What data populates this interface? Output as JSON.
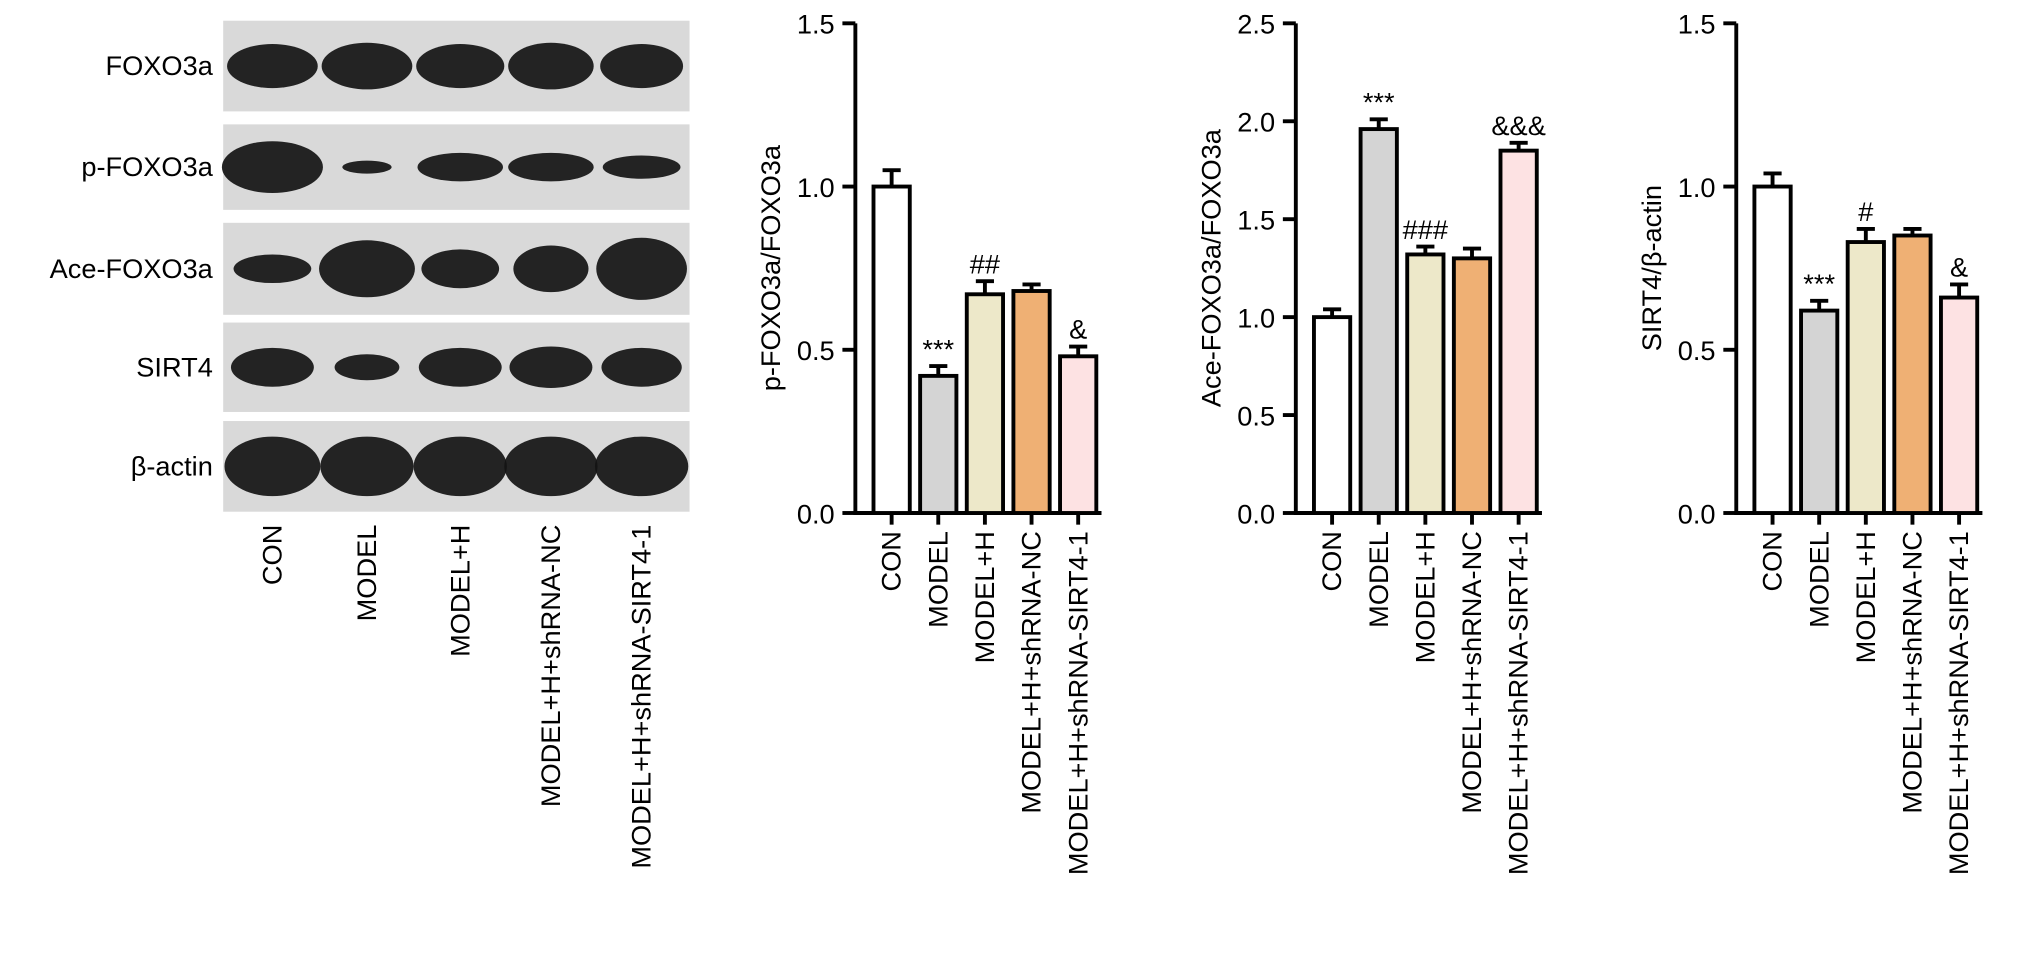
{
  "blot": {
    "rows": [
      "FOXO3a",
      "p-FOXO3a",
      "Ace-FOXO3a",
      "SIRT4",
      "β-actin"
    ],
    "lanes": [
      "CON",
      "MODEL",
      "MODEL+H",
      "MODEL+H+shRNA-NC",
      "MODEL+H+shRNA-SIRT4-1"
    ]
  },
  "chart_data": [
    {
      "type": "bar",
      "ylabel": "p-FOXO3a/FOXO3a",
      "categories": [
        "CON",
        "MODEL",
        "MODEL+H",
        "MODEL+H+shRNA-NC",
        "MODEL+H+shRNA-SIRT4-1"
      ],
      "values": [
        1.0,
        0.42,
        0.67,
        0.68,
        0.48
      ],
      "errors": [
        0.05,
        0.03,
        0.04,
        0.02,
        0.03
      ],
      "colors": [
        "#ffffff",
        "#d4d4d4",
        "#ede8c9",
        "#efb074",
        "#fde2e3"
      ],
      "annotations": [
        null,
        "***",
        "##",
        null,
        "&"
      ],
      "ylim": [
        0,
        1.5
      ],
      "yticks": [
        {
          "value": 0,
          "label": "0.0"
        },
        0.5,
        {
          "value": 1,
          "label": "1.0"
        },
        1.5
      ]
    },
    {
      "type": "bar",
      "ylabel": "Ace-FOXO3a/FOXO3a",
      "categories": [
        "CON",
        "MODEL",
        "MODEL+H",
        "MODEL+H+shRNA-NC",
        "MODEL+H+shRNA-SIRT4-1"
      ],
      "values": [
        1.0,
        1.96,
        1.32,
        1.3,
        1.85
      ],
      "errors": [
        0.04,
        0.05,
        0.04,
        0.05,
        0.04
      ],
      "colors": [
        "#ffffff",
        "#d4d4d4",
        "#ede8c9",
        "#efb074",
        "#fde2e3"
      ],
      "annotations": [
        null,
        "***",
        "###",
        null,
        "&&&"
      ],
      "ylim": [
        0,
        2.5
      ],
      "yticks": [
        {
          "value": 0,
          "label": "0.0"
        },
        0.5,
        {
          "value": 1,
          "label": "1.0"
        },
        1.5,
        {
          "value": 2,
          "label": "2.0"
        },
        2.5
      ]
    },
    {
      "type": "bar",
      "ylabel": "SIRT4/β-actin",
      "categories": [
        "CON",
        "MODEL",
        "MODEL+H",
        "MODEL+H+shRNA-NC",
        "MODEL+H+shRNA-SIRT4-1"
      ],
      "values": [
        1.0,
        0.62,
        0.83,
        0.85,
        0.66
      ],
      "errors": [
        0.04,
        0.03,
        0.04,
        0.02,
        0.04
      ],
      "colors": [
        "#ffffff",
        "#d4d4d4",
        "#ede8c9",
        "#efb074",
        "#fde2e3"
      ],
      "annotations": [
        null,
        "***",
        "#",
        null,
        "&"
      ],
      "ylim": [
        0,
        1.5
      ],
      "yticks": [
        {
          "value": 0,
          "label": "0.0"
        },
        0.5,
        {
          "value": 1,
          "label": "1.0"
        },
        1.5
      ]
    }
  ]
}
